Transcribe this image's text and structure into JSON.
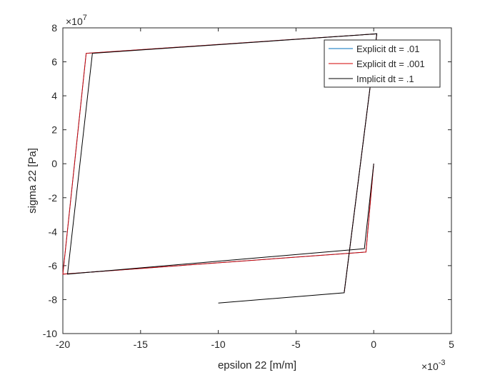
{
  "chart_data": {
    "type": "line",
    "xlabel": "epsilon 22 [m/m]",
    "ylabel": "sigma 22 [Pa]",
    "x_multiplier": {
      "base": "×10",
      "power": "-3"
    },
    "y_multiplier": {
      "base": "×10",
      "power": "7"
    },
    "xlim": [
      -20,
      5
    ],
    "xticks": [
      -20,
      -15,
      -10,
      -5,
      0,
      5
    ],
    "ylim": [
      -10,
      8
    ],
    "yticks": [
      -10,
      -8,
      -6,
      -4,
      -2,
      0,
      2,
      4,
      6,
      8
    ],
    "legend": "top-right",
    "series": [
      {
        "name": "Explicit dt = .01",
        "color": "#0072bd",
        "x": [
          0,
          -0.5,
          -20,
          -18.5,
          0.2,
          -1.9
        ],
        "values": [
          0,
          -5.2,
          -6.5,
          6.5,
          7.65,
          -7.6
        ]
      },
      {
        "name": "Explicit dt = .001",
        "color": "#d00000",
        "x": [
          0,
          -0.5,
          -20,
          -18.5,
          0.2,
          -1.9
        ],
        "values": [
          0,
          -5.2,
          -6.5,
          6.5,
          7.65,
          -7.6
        ]
      },
      {
        "name": "Implicit dt = .1",
        "color": "#000000",
        "x": [
          0,
          -0.6,
          -19.7,
          -18.1,
          0.2,
          -1.9,
          -10
        ],
        "values": [
          0,
          -5.0,
          -6.5,
          6.5,
          7.65,
          -7.6,
          -8.2
        ]
      }
    ]
  }
}
